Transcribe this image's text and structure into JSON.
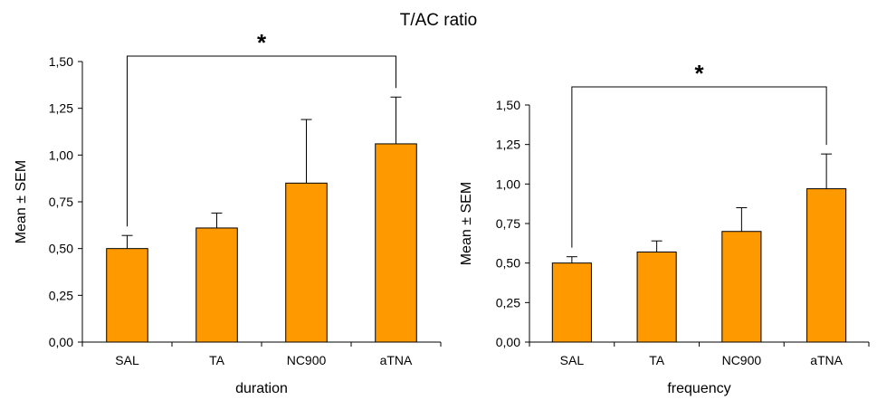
{
  "figure": {
    "title": "T/AC ratio"
  },
  "colors": {
    "bar": "#FF9900",
    "bar_outline": "#000000",
    "axis": "#000000"
  },
  "chart_data": [
    {
      "type": "bar",
      "title": "",
      "xlabel": "duration",
      "ylabel": "Mean ± SEM",
      "categories": [
        "SAL",
        "TA",
        "NC900",
        "aTNA"
      ],
      "values": [
        0.5,
        0.61,
        0.85,
        1.06
      ],
      "errors": [
        0.07,
        0.08,
        0.34,
        0.25
      ],
      "ylim": [
        0,
        1.5
      ],
      "yticks": [
        0,
        0.25,
        0.5,
        0.75,
        1.0,
        1.25,
        1.5
      ],
      "ytick_labels": [
        "0,00",
        "0,25",
        "0,50",
        "0,75",
        "1,00",
        "1,25",
        "1,50"
      ],
      "grid": false,
      "significance": {
        "from": "SAL",
        "to": "aTNA",
        "label": "*"
      }
    },
    {
      "type": "bar",
      "title": "",
      "xlabel": "frequency",
      "ylabel": "Mean ± SEM",
      "categories": [
        "SAL",
        "TA",
        "NC900",
        "aTNA"
      ],
      "values": [
        0.5,
        0.57,
        0.7,
        0.97
      ],
      "errors": [
        0.04,
        0.07,
        0.15,
        0.22
      ],
      "ylim": [
        0,
        1.5
      ],
      "yticks": [
        0,
        0.25,
        0.5,
        0.75,
        1.0,
        1.25,
        1.5
      ],
      "ytick_labels": [
        "0,00",
        "0,25",
        "0,50",
        "0,75",
        "1,00",
        "1,25",
        "1,50"
      ],
      "grid": false,
      "significance": {
        "from": "SAL",
        "to": "aTNA",
        "label": "*"
      }
    }
  ]
}
